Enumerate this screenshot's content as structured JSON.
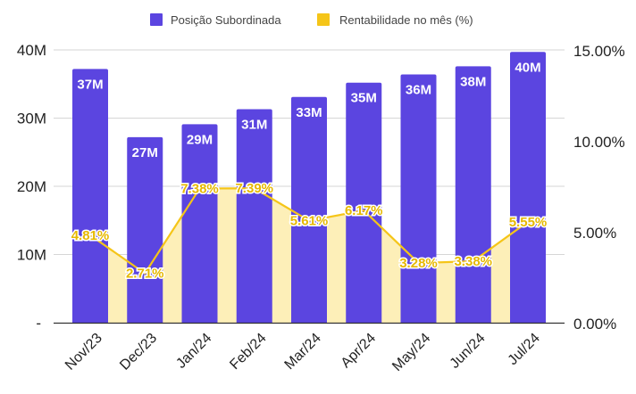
{
  "chart_data": {
    "type": "bar",
    "title": "",
    "categories": [
      "Nov/23",
      "Dec/23",
      "Jan/24",
      "Feb/24",
      "Mar/24",
      "Apr/24",
      "May/24",
      "Jun/24",
      "Jul/24"
    ],
    "series": [
      {
        "name": "Posição Subordinada",
        "type": "bar",
        "axis": "left",
        "color": "#5b45e0",
        "values": [
          37.2,
          27.2,
          29.1,
          31.3,
          33.1,
          35.2,
          36.4,
          37.6,
          39.7
        ],
        "labels": [
          "37M",
          "27M",
          "29M",
          "31M",
          "33M",
          "35M",
          "36M",
          "38M",
          "40M"
        ]
      },
      {
        "name": "Rentabilidade no mês (%)",
        "type": "area-line",
        "axis": "right",
        "color": "#f5c518",
        "fill": "#fdefb8",
        "label_color": "#e6b800",
        "values": [
          4.81,
          2.71,
          7.38,
          7.39,
          5.61,
          6.17,
          3.28,
          3.38,
          5.55
        ],
        "labels": [
          "4.81%",
          "2.71%",
          "7.38%",
          "7.39%",
          "5.61%",
          "6.17%",
          "3.28%",
          "3.38%",
          "5.55%"
        ]
      }
    ],
    "left_axis": {
      "range": [
        0,
        40
      ],
      "ticks": [
        0,
        10,
        20,
        30,
        40
      ],
      "tick_labels": [
        "-",
        "10M",
        "20M",
        "30M",
        "40M"
      ]
    },
    "right_axis": {
      "range": [
        0,
        15
      ],
      "ticks": [
        0,
        5,
        10,
        15
      ],
      "tick_labels": [
        "0.00%",
        "5.00%",
        "10.00%",
        "15.00%"
      ]
    },
    "legend": {
      "position": "top",
      "items": [
        "Posição Subordinada",
        "Rentabilidade no mês (%)"
      ]
    },
    "grid": true,
    "xlabel": "",
    "ylabel": ""
  }
}
